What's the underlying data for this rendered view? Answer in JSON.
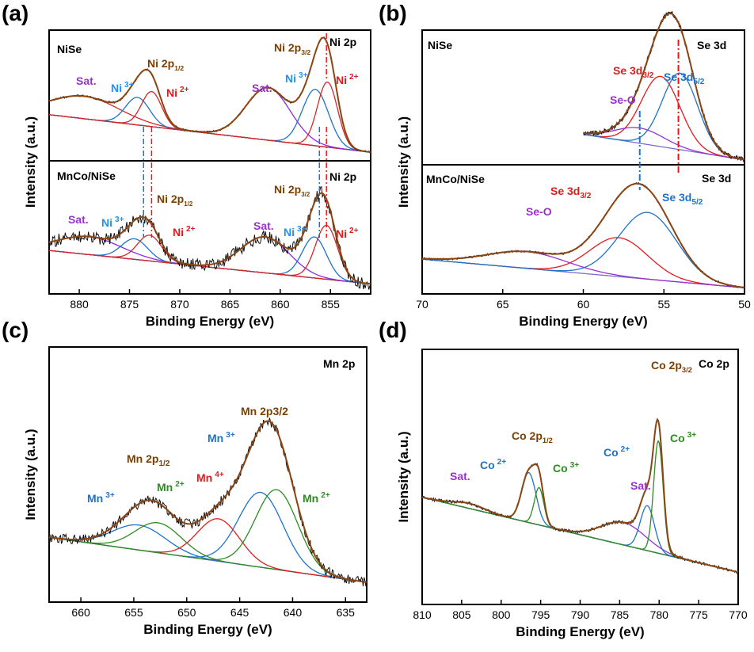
{
  "chart_data": [
    {
      "panel": "(a)",
      "type": "line",
      "xlabel": "Binding Energy (eV)",
      "ylabel": "Intensity (a.u.)",
      "xlim": [
        883,
        851
      ],
      "x_ticks": [
        880,
        875,
        870,
        865,
        860,
        855
      ],
      "x_reversed": true,
      "grid": false,
      "subplots": [
        {
          "label": "NiSe",
          "title": "Ni 2p",
          "fit_peaks": [
            {
              "center": 879.5,
              "width": 3.5,
              "height": 0.18,
              "color": "#d62728"
            },
            {
              "center": 874.2,
              "width": 1.2,
              "height": 0.22,
              "color": "#1e73c8"
            },
            {
              "center": 872.8,
              "width": 1.0,
              "height": 0.28,
              "color": "#d62728"
            },
            {
              "center": 861.2,
              "width": 2.2,
              "height": 0.42,
              "color": "#8a2be2"
            },
            {
              "center": 856.5,
              "width": 1.3,
              "height": 0.45,
              "color": "#1e73c8"
            },
            {
              "center": 855.3,
              "width": 1.0,
              "height": 0.52,
              "color": "#d62728"
            }
          ],
          "annotations": [
            {
              "text": "Sat.",
              "color": "#9932cc"
            },
            {
              "text": "Ni",
              "sup": "3+",
              "color": "#1e90ff"
            },
            {
              "text": "Ni 2p",
              "sub": "1/2",
              "color": "#7b3f00"
            },
            {
              "text": "Ni",
              "sup": "2+",
              "color": "#e31a1c"
            },
            {
              "text": "Sat.",
              "color": "#9932cc"
            },
            {
              "text": "Ni",
              "sup": "3+",
              "color": "#1e90ff"
            },
            {
              "text": "Ni 2p",
              "sub": "3/2",
              "color": "#7b3f00"
            },
            {
              "text": "Ni",
              "sup": "2+",
              "color": "#e31a1c"
            }
          ]
        },
        {
          "label": "MnCo/NiSe",
          "title": "Ni 2p",
          "fit_peaks": [
            {
              "center": 879.0,
              "width": 3.2,
              "height": 0.14,
              "color": "#8a2be2"
            },
            {
              "center": 874.5,
              "width": 1.3,
              "height": 0.16,
              "color": "#1e73c8"
            },
            {
              "center": 873.0,
              "width": 1.2,
              "height": 0.2,
              "color": "#d62728"
            },
            {
              "center": 861.5,
              "width": 2.4,
              "height": 0.28,
              "color": "#8a2be2"
            },
            {
              "center": 856.6,
              "width": 1.2,
              "height": 0.32,
              "color": "#1e73c8"
            },
            {
              "center": 855.4,
              "width": 1.1,
              "height": 0.42,
              "color": "#d62728"
            }
          ],
          "annotations": [
            {
              "text": "Sat.",
              "color": "#9932cc"
            },
            {
              "text": "Ni",
              "sup": "3+",
              "color": "#1e90ff"
            },
            {
              "text": "Ni 2p",
              "sub": "1/2",
              "color": "#7b3f00"
            },
            {
              "text": "Ni",
              "sup": "2+",
              "color": "#e31a1c"
            },
            {
              "text": "Sat.",
              "color": "#9932cc"
            },
            {
              "text": "Ni",
              "sup": "3+",
              "color": "#1e90ff"
            },
            {
              "text": "Ni 2p",
              "sub": "3/2",
              "color": "#7b3f00"
            },
            {
              "text": "Ni",
              "sup": "2+",
              "color": "#e31a1c"
            }
          ]
        }
      ],
      "reference_lines": [
        {
          "x": 873.6,
          "color": "#1e73c8",
          "style": "dashdot"
        },
        {
          "x": 872.8,
          "color": "#e31a1c",
          "style": "dashdot"
        },
        {
          "x": 856.1,
          "color": "#1e73c8",
          "style": "dashdot"
        },
        {
          "x": 855.4,
          "color": "#e31a1c",
          "style": "dashdot"
        }
      ]
    },
    {
      "panel": "(b)",
      "type": "line",
      "xlabel": "Binding Energy (eV)",
      "ylabel": "Intensity (a.u.)",
      "xlim": [
        70,
        50
      ],
      "x_ticks": [
        70,
        65,
        60,
        55,
        50
      ],
      "x_reversed": true,
      "grid": false,
      "subplots": [
        {
          "label": "NiSe",
          "title": "Se 3d",
          "x_range": [
            60,
            50
          ],
          "fit_peaks": [
            {
              "center": 55.2,
              "width": 1.2,
              "height": 0.55,
              "color": "#e31a1c"
            },
            {
              "center": 54.0,
              "width": 1.1,
              "height": 0.6,
              "color": "#1e73c8"
            },
            {
              "center": 56.5,
              "width": 1.5,
              "height": 0.12,
              "color": "#9932cc"
            }
          ],
          "annotations": [
            {
              "text": "Se 3d",
              "sub": "3/2",
              "color": "#e31a1c"
            },
            {
              "text": "Se 3d",
              "sub": "5/2",
              "color": "#1e73c8"
            },
            {
              "text": "Se-O",
              "color": "#9932cc"
            }
          ]
        },
        {
          "label": "MnCo/NiSe",
          "title": "Se 3d",
          "x_range": [
            70,
            50
          ],
          "fit_peaks": [
            {
              "center": 57.8,
              "width": 1.8,
              "height": 0.42,
              "color": "#e31a1c"
            },
            {
              "center": 56.0,
              "width": 1.8,
              "height": 0.72,
              "color": "#1e73c8"
            },
            {
              "center": 63.5,
              "width": 2.5,
              "height": 0.18,
              "color": "#9932cc"
            }
          ],
          "annotations": [
            {
              "text": "Se-O",
              "color": "#9932cc"
            },
            {
              "text": "Se 3d",
              "sub": "3/2",
              "color": "#e31a1c"
            },
            {
              "text": "Se 3d",
              "sub": "5/2",
              "color": "#1e73c8"
            }
          ]
        }
      ],
      "reference_lines": [
        {
          "x": 56.5,
          "color": "#1e73c8",
          "style": "dashdot"
        },
        {
          "x": 54.1,
          "color": "#e31a1c",
          "style": "dashdot"
        }
      ]
    },
    {
      "panel": "(c)",
      "type": "line",
      "title": "Mn 2p",
      "xlabel": "Binding Energy (eV)",
      "ylabel": "Intensity (a.u.)",
      "xlim": [
        663,
        633
      ],
      "x_ticks": [
        660,
        655,
        650,
        645,
        640,
        635
      ],
      "x_reversed": true,
      "grid": false,
      "fit_peaks": [
        {
          "center": 654.5,
          "width": 2.5,
          "height": 0.1,
          "color": "#1e73c8"
        },
        {
          "center": 652.7,
          "width": 2.2,
          "height": 0.12,
          "color": "#2e8b22"
        },
        {
          "center": 647.0,
          "width": 2.0,
          "height": 0.17,
          "color": "#e31a1c"
        },
        {
          "center": 643.0,
          "width": 2.1,
          "height": 0.3,
          "color": "#1e73c8"
        },
        {
          "center": 641.5,
          "width": 2.0,
          "height": 0.32,
          "color": "#2e8b22"
        }
      ],
      "annotations": [
        {
          "text": "Mn",
          "sup": "3+",
          "color": "#1e73c8"
        },
        {
          "text": "Mn 2p",
          "sub": "1/2",
          "color": "#7b3f00"
        },
        {
          "text": "Mn",
          "sup": "2+",
          "color": "#2e8b22"
        },
        {
          "text": "Mn",
          "sup": "4+",
          "color": "#e31a1c"
        },
        {
          "text": "Mn",
          "sup": "3+",
          "color": "#1e73c8"
        },
        {
          "text": "Mn 2p3/2",
          "color": "#7b3f00"
        },
        {
          "text": "Mn",
          "sup": "2+",
          "color": "#2e8b22"
        }
      ]
    },
    {
      "panel": "(d)",
      "type": "line",
      "title": "Co 2p",
      "xlabel": "Binding Energy (eV)",
      "ylabel": "Intensity (a.u.)",
      "xlim": [
        810,
        770
      ],
      "x_ticks": [
        810,
        805,
        800,
        795,
        790,
        785,
        780,
        775,
        770
      ],
      "x_reversed": true,
      "grid": false,
      "fit_peaks": [
        {
          "center": 804.0,
          "width": 2.0,
          "height": 0.02,
          "color": "#9932cc"
        },
        {
          "center": 796.5,
          "width": 0.9,
          "height": 0.2,
          "color": "#1e73c8"
        },
        {
          "center": 795.2,
          "width": 0.6,
          "height": 0.15,
          "color": "#2e8b22"
        },
        {
          "center": 784.5,
          "width": 2.8,
          "height": 0.09,
          "color": "#9932cc"
        },
        {
          "center": 781.5,
          "width": 0.9,
          "height": 0.18,
          "color": "#1e73c8"
        },
        {
          "center": 780.1,
          "width": 0.6,
          "height": 0.45,
          "color": "#2e8b22"
        }
      ],
      "annotations": [
        {
          "text": "Sat.",
          "color": "#9932cc"
        },
        {
          "text": "Co",
          "sup": "2+",
          "color": "#1e73c8"
        },
        {
          "text": "Co 2p",
          "sub": "1/2",
          "color": "#7b3f00"
        },
        {
          "text": "Co",
          "sup": "3+",
          "color": "#2e8b22"
        },
        {
          "text": "Co",
          "sup": "2+",
          "color": "#1e73c8"
        },
        {
          "text": "Sat.",
          "color": "#9932cc"
        },
        {
          "text": "Co 2p",
          "sub": "3/2",
          "color": "#7b3f00"
        },
        {
          "text": "Co",
          "sup": "3+",
          "color": "#2e8b22"
        }
      ]
    }
  ]
}
